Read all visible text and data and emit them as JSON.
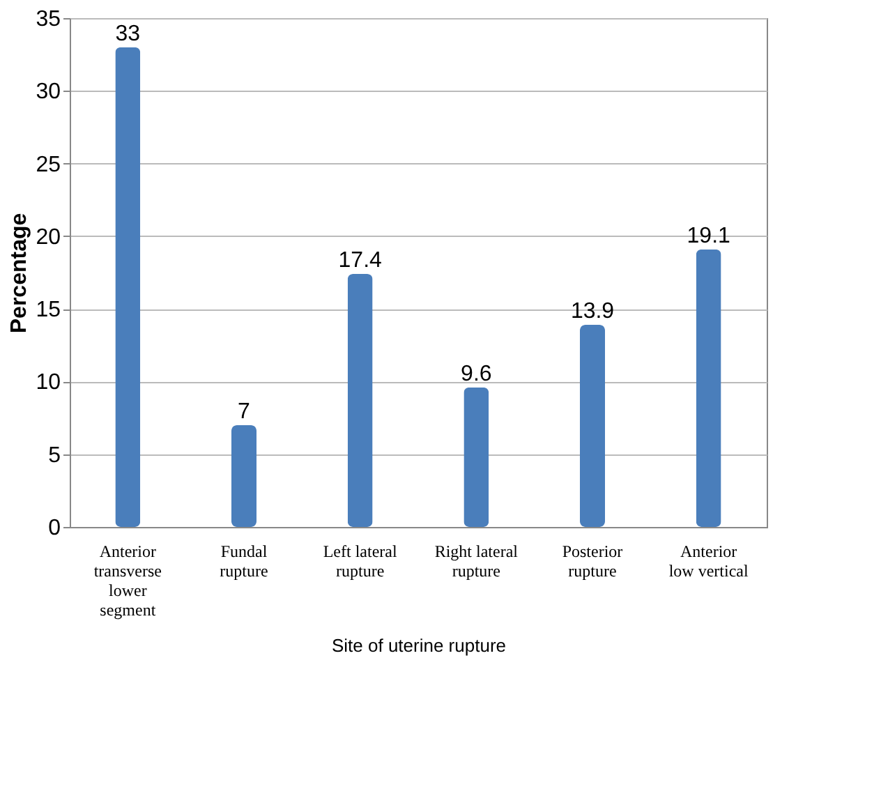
{
  "chart_data": {
    "type": "bar",
    "xlabel": "Site  of uterine rupture",
    "ylabel": "Percentage",
    "categories": [
      "Anterior\ntransverse\nlower\nsegment",
      "Fundal\nrupture",
      "Left lateral\nrupture",
      "Right lateral\nrupture",
      "Posterior\nrupture",
      "Anterior\nlow vertical"
    ],
    "values": [
      33,
      7,
      17.4,
      9.6,
      13.9,
      19.1
    ],
    "color": "#4a7ebb",
    "ylim": [
      0,
      35
    ],
    "yticks": [
      0,
      5,
      10,
      15,
      20,
      25,
      30,
      35
    ],
    "grid": "y",
    "data_labels": true
  }
}
